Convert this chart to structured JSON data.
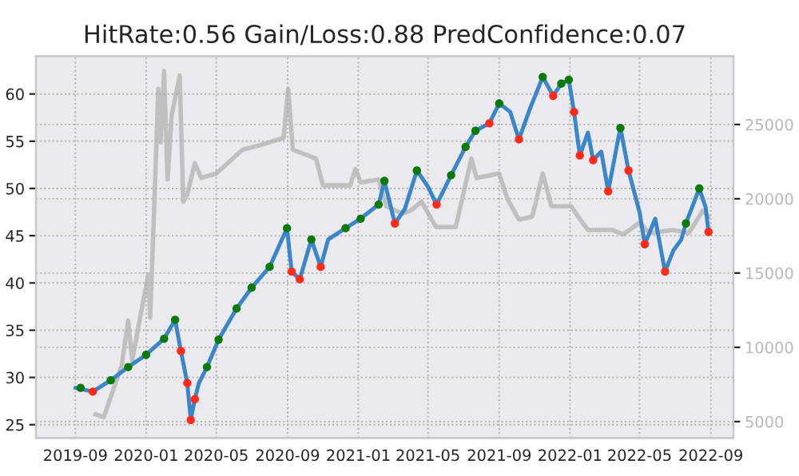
{
  "chart_data": {
    "type": "line",
    "title": "HitRate:0.56 Gain/Loss:0.88 PredConfidence:0.07",
    "grid": true,
    "xlim": [
      "2019-06-25",
      "2022-10-10"
    ],
    "xticks": [
      "2019-09",
      "2020-01",
      "2020-05",
      "2020-09",
      "2021-01",
      "2021-05",
      "2021-09",
      "2022-01",
      "2022-05",
      "2022-09"
    ],
    "ylim": [
      23.6,
      64
    ],
    "yticks": [
      25,
      30,
      35,
      40,
      45,
      50,
      55,
      60
    ],
    "y2lim": [
      3900,
      29600
    ],
    "y2ticks": [
      5000,
      10000,
      15000,
      20000,
      25000
    ],
    "series": [
      {
        "axis": "y2",
        "color": "#c0c0c0",
        "x": [
          "2019-10-05",
          "2019-10-20",
          "2019-11-20",
          "2019-12-01",
          "2019-12-08",
          "2019-12-25",
          "2020-01-05",
          "2020-01-08",
          "2020-01-15",
          "2020-01-22",
          "2020-01-26",
          "2020-02-01",
          "2020-02-07",
          "2020-02-14",
          "2020-02-28",
          "2020-03-05",
          "2020-03-12",
          "2020-03-25",
          "2020-04-05",
          "2020-05-01",
          "2020-06-15",
          "2020-07-15",
          "2020-08-25",
          "2020-09-02",
          "2020-09-10",
          "2020-10-20",
          "2020-11-01",
          "2020-12-18",
          "2020-12-27",
          "2021-01-05",
          "2021-02-05",
          "2021-02-18",
          "2021-03-18",
          "2021-04-01",
          "2021-04-20",
          "2021-05-15",
          "2021-06-18",
          "2021-07-15",
          "2021-07-24",
          "2021-09-01",
          "2021-09-15",
          "2021-10-05",
          "2021-10-28",
          "2021-11-15",
          "2021-11-30",
          "2022-01-03",
          "2022-01-15",
          "2022-02-01",
          "2022-03-15",
          "2022-04-03",
          "2022-05-01",
          "2022-05-18",
          "2022-06-28",
          "2022-07-25",
          "2022-08-18",
          "2022-08-28"
        ],
        "values": [
          5500,
          5300,
          8800,
          11800,
          9100,
          12700,
          14900,
          12000,
          19500,
          27400,
          23800,
          28600,
          21300,
          25600,
          28300,
          19800,
          20300,
          22400,
          21400,
          21700,
          23300,
          23600,
          24100,
          27400,
          23300,
          22700,
          20900,
          20900,
          22000,
          21100,
          21300,
          19500,
          19000,
          19200,
          19800,
          18100,
          18100,
          22700,
          21400,
          21700,
          20000,
          18600,
          18800,
          21700,
          19500,
          19500,
          18800,
          17900,
          17900,
          17600,
          18400,
          17700,
          17900,
          17700,
          19200,
          18800
        ]
      },
      {
        "color": "#3a86c8",
        "x": [
          "2019-09-01",
          "2019-10-01",
          "2019-11-01",
          "2019-12-01",
          "2020-01-01",
          "2020-02-01",
          "2020-02-20",
          "2020-03-01",
          "2020-03-12",
          "2020-03-18",
          "2020-03-25",
          "2020-04-01",
          "2020-04-15",
          "2020-05-05",
          "2020-06-05",
          "2020-07-01",
          "2020-08-01",
          "2020-08-31",
          "2020-09-08",
          "2020-09-22",
          "2020-10-12",
          "2020-10-28",
          "2020-11-10",
          "2020-12-10",
          "2021-01-05",
          "2021-02-05",
          "2021-02-15",
          "2021-03-05",
          "2021-03-22",
          "2021-04-12",
          "2021-05-01",
          "2021-05-16",
          "2021-06-10",
          "2021-07-05",
          "2021-07-22",
          "2021-08-15",
          "2021-09-01",
          "2021-09-20",
          "2021-10-05",
          "2021-10-25",
          "2021-11-15",
          "2021-12-03",
          "2021-12-17",
          "2021-12-30",
          "2022-01-08",
          "2022-01-18",
          "2022-02-01",
          "2022-02-10",
          "2022-02-24",
          "2022-03-08",
          "2022-03-25",
          "2022-03-29",
          "2022-04-12",
          "2022-05-01",
          "2022-05-10",
          "2022-05-28",
          "2022-06-14",
          "2022-06-28",
          "2022-07-12",
          "2022-07-20",
          "2022-08-12",
          "2022-08-23",
          "2022-08-28"
        ],
        "values": [
          28.9,
          28.5,
          29.7,
          31.1,
          32.4,
          34.1,
          36.1,
          32.8,
          29.4,
          25.5,
          27.7,
          29.4,
          31.1,
          34.0,
          37.3,
          39.5,
          41.7,
          45.8,
          41.2,
          40.4,
          44.6,
          41.7,
          44.6,
          45.8,
          46.8,
          48.3,
          50.8,
          46.3,
          47.8,
          51.9,
          50.2,
          48.3,
          51.4,
          54.4,
          56.1,
          56.9,
          59.0,
          58.1,
          55.2,
          58.6,
          61.8,
          59.8,
          61.1,
          61.5,
          58.1,
          53.5,
          55.9,
          53.0,
          53.9,
          49.7,
          55.2,
          56.4,
          51.9,
          47.5,
          44.1,
          46.8,
          41.2,
          43.4,
          44.6,
          46.3,
          50.0,
          48.0,
          45.4
        ]
      },
      {
        "type": "scatter",
        "marker": "circle",
        "color": "#0b7a0b",
        "x": [
          "2019-09-10",
          "2019-11-01",
          "2019-12-01",
          "2020-01-01",
          "2020-02-01",
          "2020-02-20",
          "2020-04-15",
          "2020-05-05",
          "2020-06-05",
          "2020-07-01",
          "2020-08-01",
          "2020-08-31",
          "2020-10-12",
          "2020-12-10",
          "2021-01-05",
          "2021-02-05",
          "2021-02-15",
          "2021-04-12",
          "2021-06-10",
          "2021-07-05",
          "2021-07-22",
          "2021-09-01",
          "2021-11-15",
          "2021-12-17",
          "2021-12-30",
          "2022-03-29",
          "2022-07-20",
          "2022-08-12"
        ],
        "values": [
          28.9,
          29.7,
          31.1,
          32.4,
          34.1,
          36.1,
          31.1,
          34.0,
          37.3,
          39.5,
          41.7,
          45.8,
          44.6,
          45.8,
          46.8,
          48.3,
          50.8,
          51.9,
          51.4,
          54.4,
          56.1,
          59.0,
          61.8,
          61.1,
          61.5,
          56.4,
          46.3,
          50.0
        ]
      },
      {
        "type": "scatter",
        "marker": "circle",
        "color": "#ff2a1a",
        "x": [
          "2019-10-01",
          "2020-03-01",
          "2020-03-12",
          "2020-03-18",
          "2020-03-25",
          "2020-09-08",
          "2020-09-22",
          "2020-10-28",
          "2021-03-05",
          "2021-05-16",
          "2021-08-15",
          "2021-10-05",
          "2021-12-03",
          "2022-01-08",
          "2022-01-18",
          "2022-02-10",
          "2022-03-08",
          "2022-04-12",
          "2022-05-10",
          "2022-06-14",
          "2022-08-28"
        ],
        "values": [
          28.5,
          32.8,
          29.4,
          25.5,
          27.7,
          41.2,
          40.4,
          41.7,
          46.3,
          48.3,
          56.9,
          55.2,
          59.8,
          58.1,
          53.5,
          53.0,
          49.7,
          51.9,
          44.1,
          41.2,
          45.4
        ]
      }
    ]
  }
}
